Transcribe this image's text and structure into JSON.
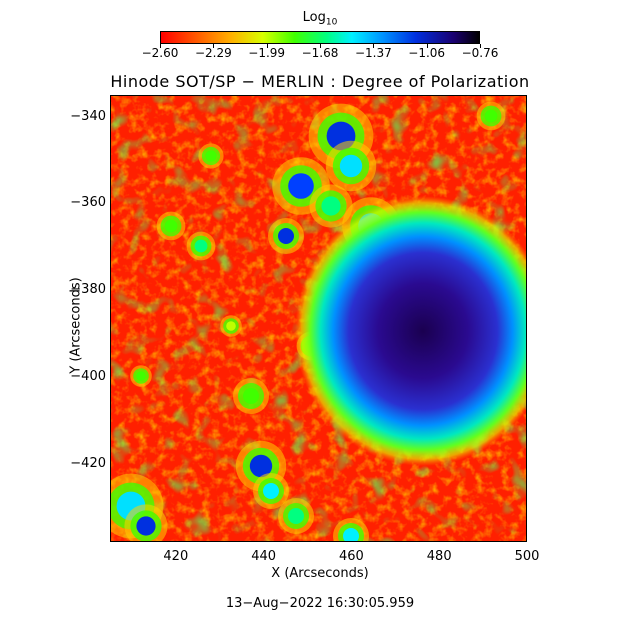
{
  "colorbar": {
    "title": "Log",
    "title_sub": "10",
    "ticks": [
      "−2.60",
      "−2.29",
      "−1.99",
      "−1.68",
      "−1.37",
      "−1.06",
      "−0.76"
    ]
  },
  "plot": {
    "title": "Hinode SOT/SP − MERLIN : Degree of Polarization",
    "xlabel": "X (Arcseconds)",
    "ylabel": "Y (Arcseconds)",
    "xticks": [
      "420",
      "440",
      "460",
      "480",
      "500"
    ],
    "yticks": [
      "−340",
      "−360",
      "−380",
      "−400",
      "−420"
    ],
    "xrange": [
      405,
      500
    ],
    "yrange": [
      -335,
      -438
    ],
    "colormap": [
      "#ff0000",
      "#ffb000",
      "#40ff00",
      "#00f0ff",
      "#0030e0",
      "#000000"
    ],
    "sunspot_center": [
      475,
      -390
    ]
  },
  "footer": {
    "timestamp": "13−Aug−2022 16:30:05.959"
  }
}
